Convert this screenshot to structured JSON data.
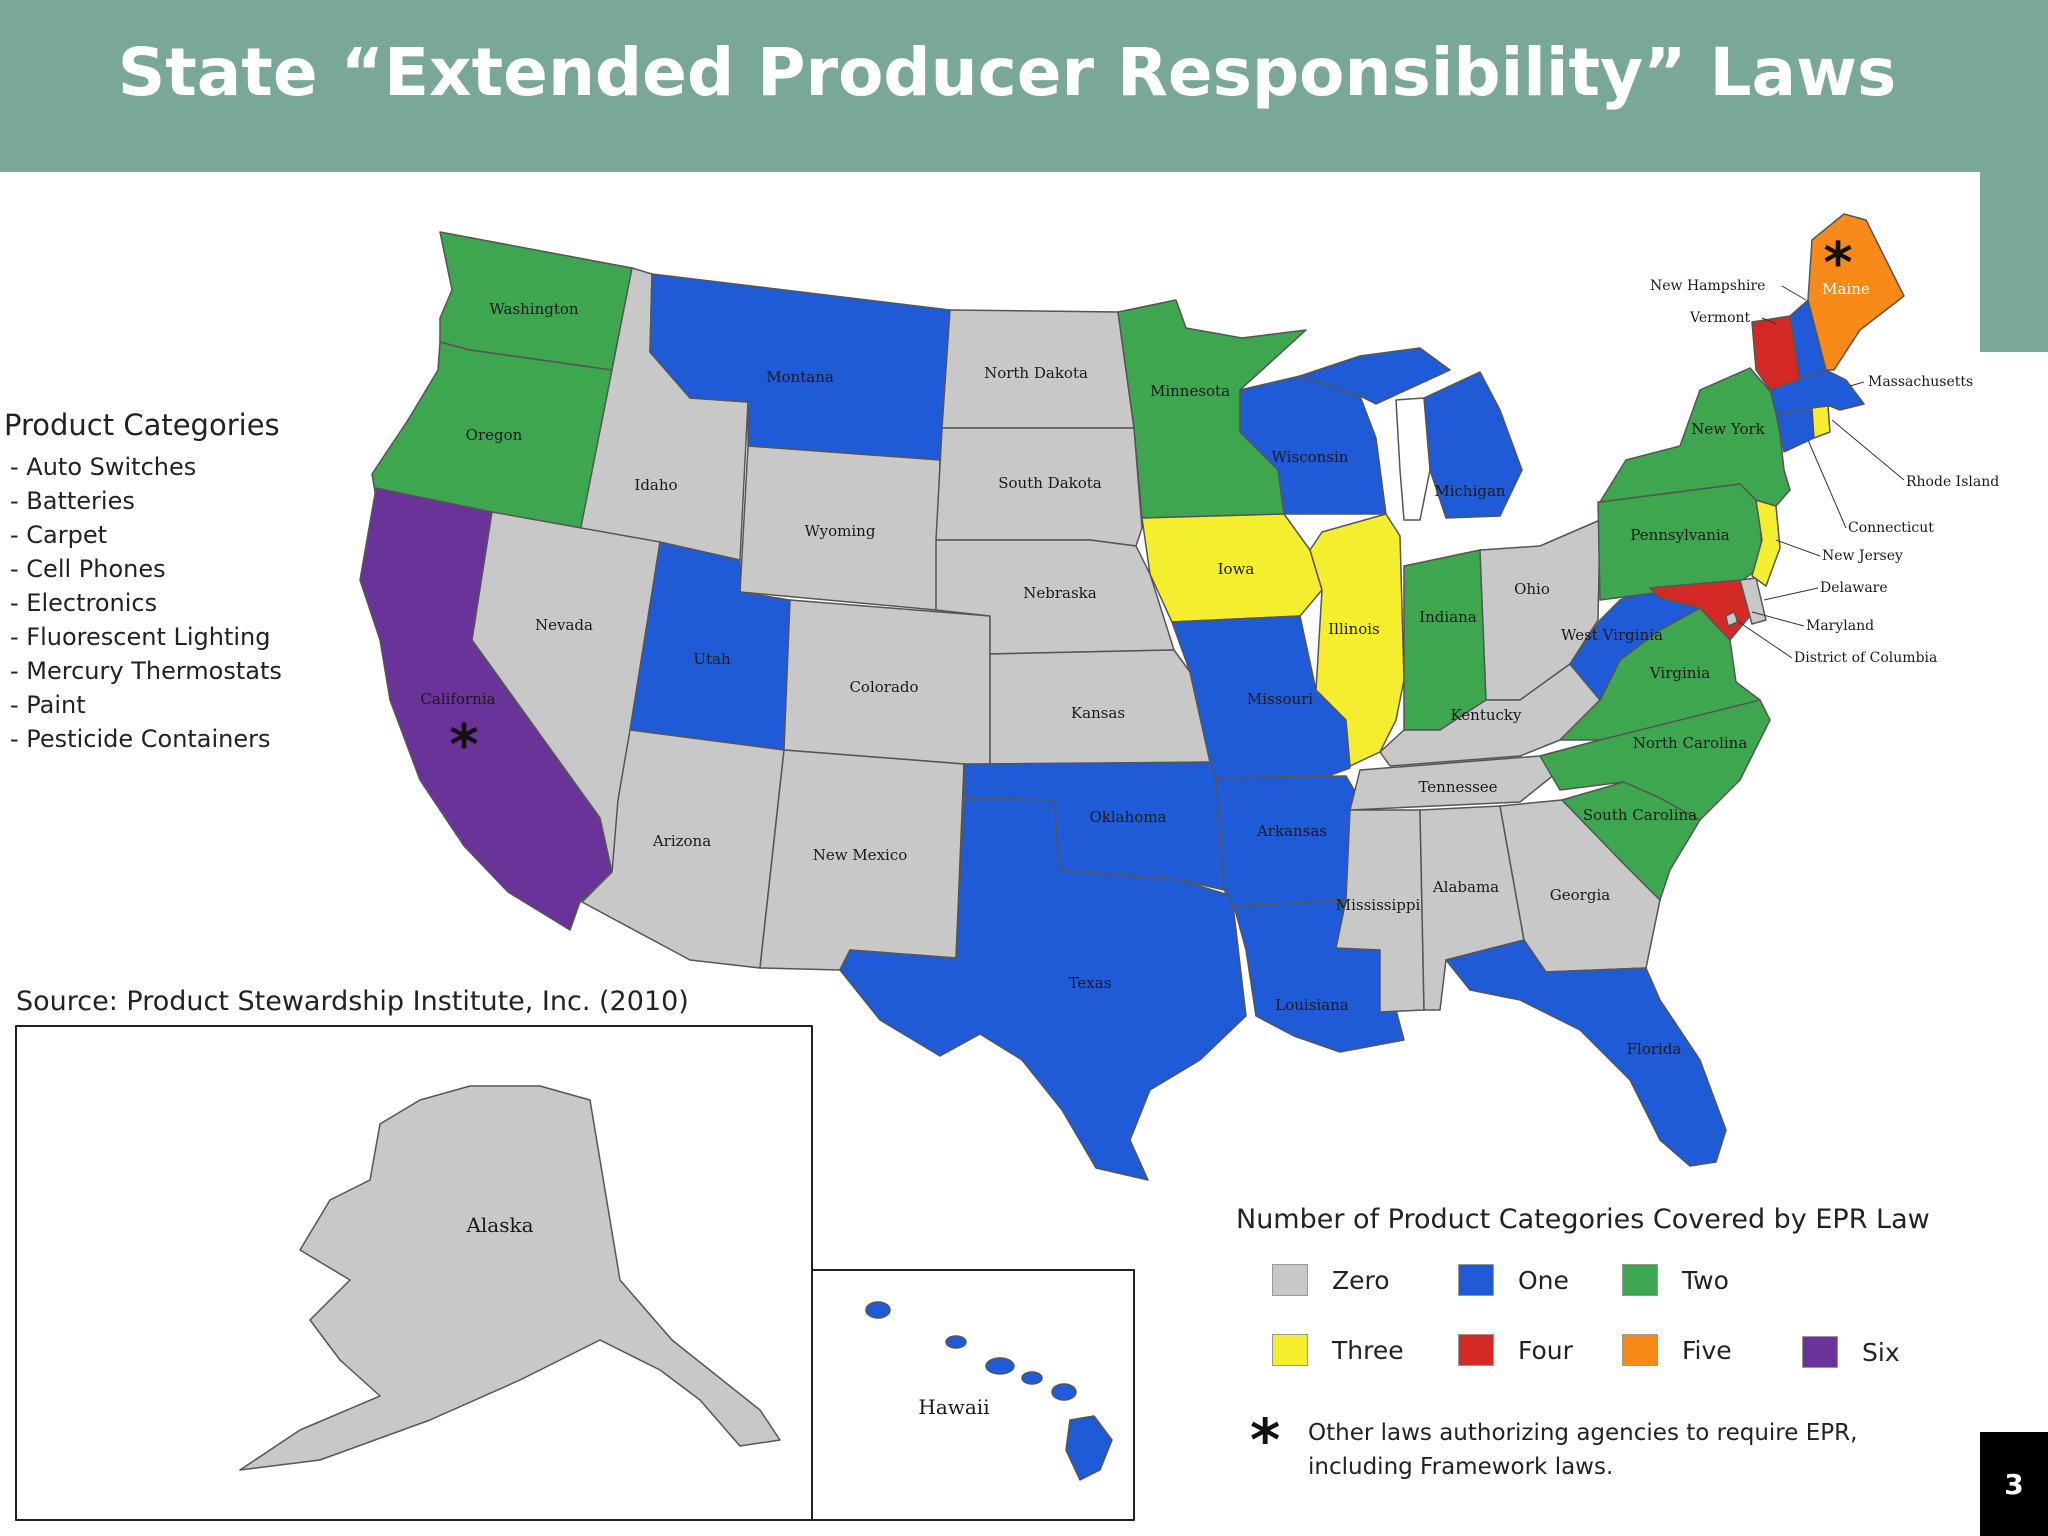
{
  "title": "State “Extended Producer Responsibility” Laws",
  "categories": {
    "heading": "Product Categories",
    "items": [
      "- Auto Switches",
      "- Batteries",
      "- Carpet",
      "- Cell Phones",
      "- Electronics",
      "- Fluorescent Lighting",
      "- Mercury Thermostats",
      "- Paint",
      "- Pesticide Containers"
    ]
  },
  "source": "Source: Product Stewardship Institute, Inc. (2010)",
  "colors": {
    "zero": "#c8c8c8",
    "one": "#1f5bd6",
    "two": "#3fa650",
    "three": "#f5ee2e",
    "four": "#d42a26",
    "five": "#f88a1a",
    "six": "#6a3399",
    "title_bar": "#7aa898"
  },
  "states": {
    "washington": {
      "label": "Washington",
      "count": 2
    },
    "oregon": {
      "label": "Oregon",
      "count": 2
    },
    "california": {
      "label": "California",
      "count": 6,
      "framework": true
    },
    "idaho": {
      "label": "Idaho",
      "count": 0
    },
    "nevada": {
      "label": "Nevada",
      "count": 0
    },
    "montana": {
      "label": "Montana",
      "count": 1
    },
    "wyoming": {
      "label": "Wyoming",
      "count": 0
    },
    "utah": {
      "label": "Utah",
      "count": 1
    },
    "arizona": {
      "label": "Arizona",
      "count": 0
    },
    "colorado": {
      "label": "Colorado",
      "count": 0
    },
    "new_mexico": {
      "label": "New Mexico",
      "count": 0
    },
    "north_dakota": {
      "label": "North Dakota",
      "count": 0
    },
    "south_dakota": {
      "label": "South Dakota",
      "count": 0
    },
    "nebraska": {
      "label": "Nebraska",
      "count": 0
    },
    "kansas": {
      "label": "Kansas",
      "count": 0
    },
    "oklahoma": {
      "label": "Oklahoma",
      "count": 1
    },
    "texas": {
      "label": "Texas",
      "count": 1
    },
    "minnesota": {
      "label": "Minnesota",
      "count": 2
    },
    "iowa": {
      "label": "Iowa",
      "count": 3
    },
    "missouri": {
      "label": "Missouri",
      "count": 1
    },
    "arkansas": {
      "label": "Arkansas",
      "count": 1
    },
    "louisiana": {
      "label": "Louisiana",
      "count": 1
    },
    "wisconsin": {
      "label": "Wisconsin",
      "count": 1
    },
    "illinois": {
      "label": "Illinois",
      "count": 3
    },
    "michigan": {
      "label": "Michigan",
      "count": 1
    },
    "indiana": {
      "label": "Indiana",
      "count": 2
    },
    "ohio": {
      "label": "Ohio",
      "count": 0
    },
    "kentucky": {
      "label": "Kentucky",
      "count": 0
    },
    "tennessee": {
      "label": "Tennessee",
      "count": 0
    },
    "mississippi": {
      "label": "Mississippi",
      "count": 0
    },
    "alabama": {
      "label": "Alabama",
      "count": 0
    },
    "georgia": {
      "label": "Georgia",
      "count": 0
    },
    "florida": {
      "label": "Florida",
      "count": 1
    },
    "south_carolina": {
      "label": "South Carolina",
      "count": 2
    },
    "north_carolina": {
      "label": "North Carolina",
      "count": 2
    },
    "virginia": {
      "label": "Virginia",
      "count": 2
    },
    "west_virginia": {
      "label": "West Virginia",
      "count": 1
    },
    "pennsylvania": {
      "label": "Pennsylvania",
      "count": 2
    },
    "new_york": {
      "label": "New York",
      "count": 2
    },
    "maryland": {
      "label": "Maryland",
      "count": 4
    },
    "vermont": {
      "label": "Vermont",
      "count": 4
    },
    "new_hampshire": {
      "label": "New Hampshire",
      "count": 1
    },
    "maine": {
      "label": "Maine",
      "count": 5,
      "framework": true
    },
    "massachusetts": {
      "label": "Massachusetts",
      "count": 1
    },
    "connecticut": {
      "label": "Connecticut",
      "count": 1
    },
    "rhode_island": {
      "label": "Rhode Island",
      "count": 3
    },
    "new_jersey": {
      "label": "New Jersey",
      "count": 3
    },
    "delaware": {
      "label": "Delaware",
      "count": 0
    },
    "district_of_columbia": {
      "label": "District of Columbia",
      "count": 0
    },
    "alaska": {
      "label": "Alaska",
      "count": 0
    },
    "hawaii": {
      "label": "Hawaii",
      "count": 1
    }
  },
  "legend": {
    "title": "Number of Product Categories Covered by EPR Law",
    "items": [
      {
        "label": "Zero",
        "color": "#c8c8c8"
      },
      {
        "label": "One",
        "color": "#1f5bd6"
      },
      {
        "label": "Two",
        "color": "#3fa650"
      },
      {
        "label": "Three",
        "color": "#f5ee2e"
      },
      {
        "label": "Four",
        "color": "#d42a26"
      },
      {
        "label": "Five",
        "color": "#f88a1a"
      },
      {
        "label": "Six",
        "color": "#6a3399"
      }
    ],
    "asterisk_symbol": "*",
    "asterisk_note_line1": "Other laws authorizing agencies to require EPR,",
    "asterisk_note_line2": "including Framework laws."
  },
  "page_number": "3"
}
